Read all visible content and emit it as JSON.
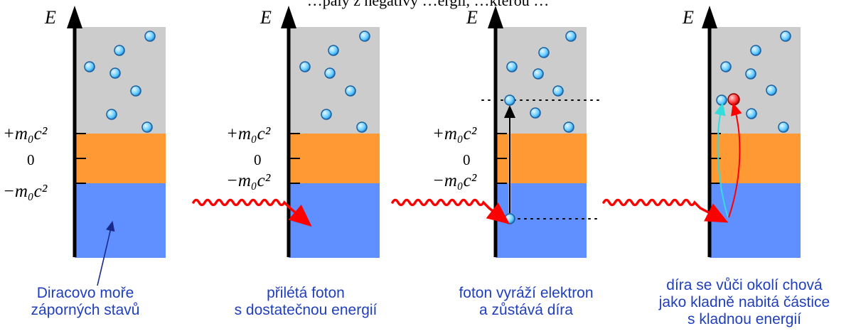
{
  "top_text_fragment": "…pály z negativy …ergií, …kterou …",
  "axis_label": "E",
  "level_labels": {
    "plus": "+m₀c²",
    "zero": "0",
    "minus": "−m₀c²"
  },
  "panels": [
    {
      "id": "panel-1",
      "caption_lines": [
        "Diracovo moře",
        "záporných stavů"
      ]
    },
    {
      "id": "panel-2",
      "caption_lines": [
        "přilétá foton",
        "s dostatečnou energií"
      ]
    },
    {
      "id": "panel-3",
      "caption_lines": [
        "foton vyráží elektron",
        "a zůstává díra"
      ]
    },
    {
      "id": "panel-4",
      "caption_lines": [
        "díra se vůči okolí chová",
        "jako kladně nabitá částice",
        "s kladnou energií"
      ]
    }
  ],
  "colors": {
    "upper_band": "#cccccc",
    "gap_band": "#ff9933",
    "dirac_sea": "#6090ff",
    "electron_fill": "#66ccff",
    "hole_fill": "#ff3333",
    "photon": "#ff0000",
    "caption_text": "#1f3fbf",
    "cyan_arrow": "#33dddd"
  }
}
